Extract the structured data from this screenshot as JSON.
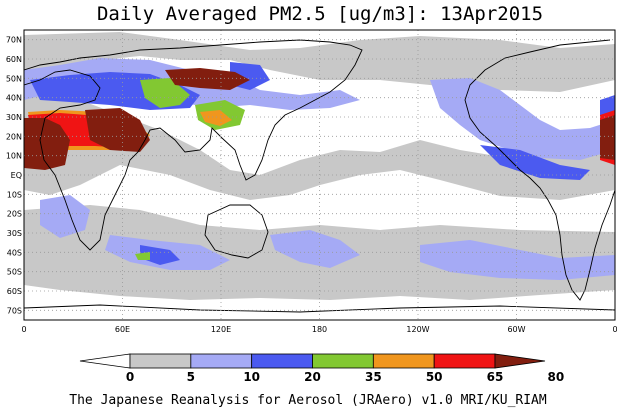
{
  "title": "Daily Averaged PM2.5 [ug/m3]: 13Apr2015",
  "credit": "The Japanese Reanalysis for Aerosol (JRAero) v1.0 MRI/KU_RIAM",
  "lat_labels": [
    "70N",
    "60N",
    "50N",
    "40N",
    "30N",
    "20N",
    "10N",
    "EQ",
    "10S",
    "20S",
    "30S",
    "40S",
    "50S",
    "60S",
    "70S"
  ],
  "lon_labels": [
    "0",
    "60E",
    "120E",
    "180",
    "120W",
    "60W",
    "0"
  ],
  "colorbar": {
    "labels": [
      "0",
      "5",
      "10",
      "20",
      "35",
      "50",
      "65",
      "80"
    ],
    "colors": [
      "#ffffff",
      "#c8c8c8",
      "#a5aaf5",
      "#4b5af0",
      "#82c832",
      "#f0961e",
      "#f01414",
      "#821e0f"
    ]
  },
  "colors": {
    "grid": "#999999",
    "coast": "#000000"
  }
}
